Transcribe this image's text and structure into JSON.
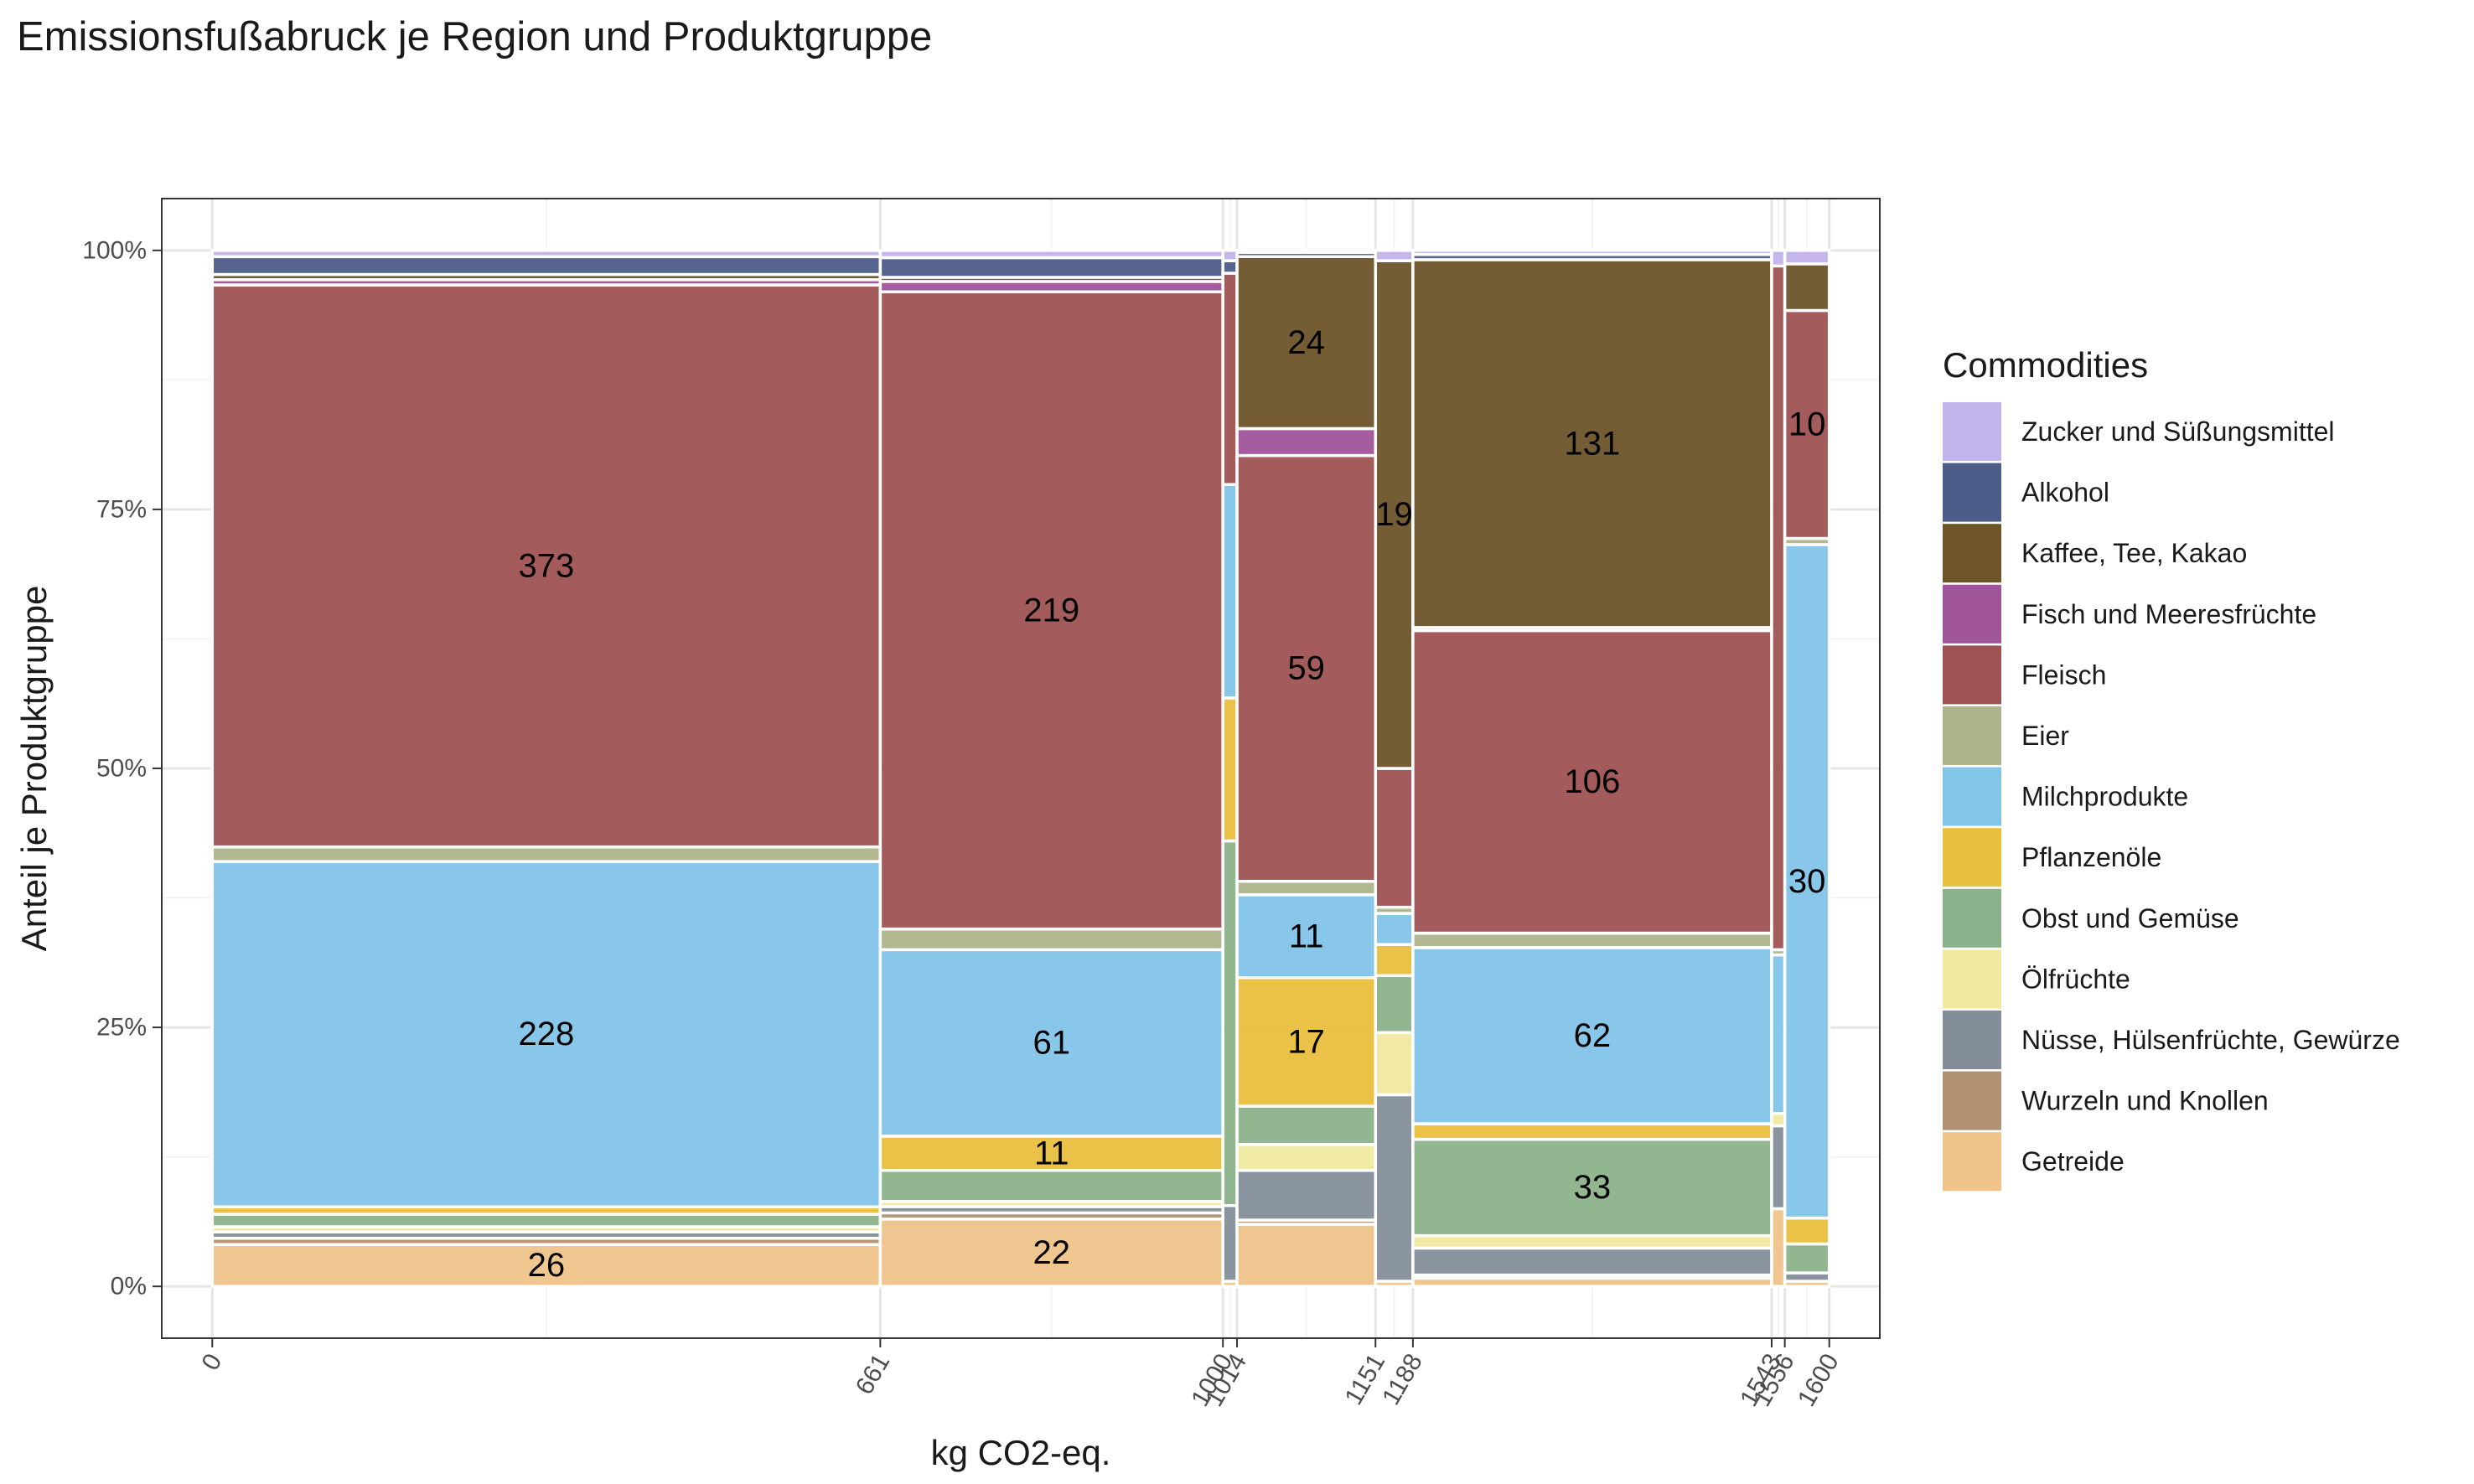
{
  "chart_data": {
    "type": "mosaic",
    "title": "Emissionsfußabruck je Region und Produktgruppe",
    "xlabel": "kg CO2-eq.",
    "ylabel": "Anteil je Produktgruppe",
    "xlim": [
      -50,
      1650
    ],
    "ylim": [
      -0.05,
      1.05
    ],
    "x_breaks": [
      0,
      661,
      1000,
      1014,
      1151,
      1188,
      1543,
      1556,
      1600
    ],
    "y_breaks": [
      0,
      0.25,
      0.5,
      0.75,
      1.0
    ],
    "y_tick_labels": [
      "0%",
      "25%",
      "50%",
      "75%",
      "100%"
    ],
    "grid": true,
    "legend_position": "right",
    "legend_title": "Commodities",
    "commodities": [
      {
        "name": "Zucker und Süßungsmittel",
        "color": "#C2B3EB"
      },
      {
        "name": "Alkohol",
        "color": "#4E5C89"
      },
      {
        "name": "Kaffee, Tee, Kakao",
        "color": "#6D5429"
      },
      {
        "name": "Fisch und Meeresfrüchte",
        "color": "#A0549A"
      },
      {
        "name": "Fleisch",
        "color": "#9E5252"
      },
      {
        "name": "Eier",
        "color": "#ADB48C"
      },
      {
        "name": "Milchprodukte",
        "color": "#83C4E9"
      },
      {
        "name": "Pflanzenöle",
        "color": "#E9BF3E"
      },
      {
        "name": "Obst und Gemüse",
        "color": "#8BB28A"
      },
      {
        "name": "Ölfrüchte",
        "color": "#F0E8A1"
      },
      {
        "name": "Nüsse, Hülsenfrüchte, Gewürze",
        "color": "#848E9A"
      },
      {
        "name": "Wurzeln und Knollen",
        "color": "#B09272"
      },
      {
        "name": "Getreide",
        "color": "#EFC38A"
      }
    ],
    "regions": [
      {
        "x_start": 0,
        "x_end": 661,
        "segments": [
          {
            "commodity": "Getreide",
            "value": 26,
            "share": 0.04,
            "label": "26"
          },
          {
            "commodity": "Wurzeln und Knollen",
            "share": 0.006
          },
          {
            "commodity": "Nüsse, Hülsenfrüchte, Gewürze",
            "share": 0.006
          },
          {
            "commodity": "Ölfrüchte",
            "share": 0.005
          },
          {
            "commodity": "Obst und Gemüse",
            "share": 0.012
          },
          {
            "commodity": "Pflanzenöle",
            "share": 0.007
          },
          {
            "commodity": "Milchprodukte",
            "value": 228,
            "share": 0.33,
            "label": "228"
          },
          {
            "commodity": "Eier",
            "share": 0.014
          },
          {
            "commodity": "Fleisch",
            "value": 373,
            "share": 0.537,
            "label": "373"
          },
          {
            "commodity": "Fisch und Meeresfrüchte",
            "share": 0.005
          },
          {
            "commodity": "Kaffee, Tee, Kakao",
            "share": 0.005
          },
          {
            "commodity": "Alkohol",
            "share": 0.017
          },
          {
            "commodity": "Zucker und Süßungsmittel",
            "share": 0.006
          }
        ]
      },
      {
        "x_start": 661,
        "x_end": 1000,
        "segments": [
          {
            "commodity": "Getreide",
            "value": 22,
            "share": 0.065,
            "label": "22"
          },
          {
            "commodity": "Wurzeln und Knollen",
            "share": 0.006
          },
          {
            "commodity": "Nüsse, Hülsenfrüchte, Gewürze",
            "share": 0.006
          },
          {
            "commodity": "Ölfrüchte",
            "share": 0.005
          },
          {
            "commodity": "Obst und Gemüse",
            "share": 0.03
          },
          {
            "commodity": "Pflanzenöle",
            "value": 11,
            "share": 0.033,
            "label": "11"
          },
          {
            "commodity": "Milchprodukte",
            "value": 61,
            "share": 0.18,
            "label": "61"
          },
          {
            "commodity": "Eier",
            "share": 0.02
          },
          {
            "commodity": "Fleisch",
            "value": 219,
            "share": 0.615,
            "label": "219"
          },
          {
            "commodity": "Fisch und Meeresfrüchte",
            "share": 0.01
          },
          {
            "commodity": "Kaffee, Tee, Kakao",
            "share": 0.004
          },
          {
            "commodity": "Alkohol",
            "share": 0.019
          },
          {
            "commodity": "Zucker und Süßungsmittel",
            "share": 0.007
          }
        ]
      },
      {
        "x_start": 1000,
        "x_end": 1014,
        "segments": [
          {
            "commodity": "Getreide",
            "share": 0.005
          },
          {
            "commodity": "Nüsse, Hülsenfrüchte, Gewürze",
            "share": 0.073
          },
          {
            "commodity": "Obst und Gemüse",
            "share": 0.352
          },
          {
            "commodity": "Pflanzenöle",
            "share": 0.138
          },
          {
            "commodity": "Milchprodukte",
            "share": 0.206
          },
          {
            "commodity": "Fleisch",
            "share": 0.204
          },
          {
            "commodity": "Alkohol",
            "share": 0.012
          },
          {
            "commodity": "Zucker und Süßungsmittel",
            "share": 0.01
          }
        ]
      },
      {
        "x_start": 1014,
        "x_end": 1151,
        "segments": [
          {
            "commodity": "Getreide",
            "share": 0.06
          },
          {
            "commodity": "Wurzeln und Knollen",
            "share": 0.004
          },
          {
            "commodity": "Nüsse, Hülsenfrüchte, Gewürze",
            "share": 0.048
          },
          {
            "commodity": "Ölfrüchte",
            "share": 0.025
          },
          {
            "commodity": "Obst und Gemüse",
            "share": 0.037
          },
          {
            "commodity": "Pflanzenöle",
            "value": 17,
            "share": 0.124,
            "label": "17"
          },
          {
            "commodity": "Milchprodukte",
            "value": 11,
            "share": 0.08,
            "label": "11"
          },
          {
            "commodity": "Eier",
            "share": 0.013
          },
          {
            "commodity": "Fleisch",
            "value": 59,
            "share": 0.411,
            "label": "59"
          },
          {
            "commodity": "Fisch und Meeresfrüchte",
            "share": 0.026
          },
          {
            "commodity": "Kaffee, Tee, Kakao",
            "value": 24,
            "share": 0.166,
            "label": "24"
          },
          {
            "commodity": "Alkohol",
            "share": 0.004
          },
          {
            "commodity": "Zucker und Süßungsmittel",
            "share": 0.002
          }
        ]
      },
      {
        "x_start": 1151,
        "x_end": 1188,
        "segments": [
          {
            "commodity": "Getreide",
            "share": 0.005
          },
          {
            "commodity": "Nüsse, Hülsenfrüchte, Gewürze",
            "share": 0.18
          },
          {
            "commodity": "Ölfrüchte",
            "share": 0.06
          },
          {
            "commodity": "Obst und Gemüse",
            "share": 0.055
          },
          {
            "commodity": "Pflanzenöle",
            "share": 0.03
          },
          {
            "commodity": "Milchprodukte",
            "share": 0.03
          },
          {
            "commodity": "Eier",
            "share": 0.006
          },
          {
            "commodity": "Fleisch",
            "share": 0.134
          },
          {
            "commodity": "Kaffee, Tee, Kakao",
            "value": 19,
            "share": 0.49,
            "label": "19"
          },
          {
            "commodity": "Zucker und Süßungsmittel",
            "share": 0.01
          }
        ]
      },
      {
        "x_start": 1188,
        "x_end": 1543,
        "segments": [
          {
            "commodity": "Getreide",
            "share": 0.008
          },
          {
            "commodity": "Wurzeln und Knollen",
            "share": 0.003
          },
          {
            "commodity": "Nüsse, Hülsenfrüchte, Gewürze",
            "share": 0.026
          },
          {
            "commodity": "Ölfrüchte",
            "share": 0.012
          },
          {
            "commodity": "Obst und Gemüse",
            "value": 33,
            "share": 0.093,
            "label": "33"
          },
          {
            "commodity": "Pflanzenöle",
            "share": 0.015
          },
          {
            "commodity": "Milchprodukte",
            "value": 62,
            "share": 0.17,
            "label": "62"
          },
          {
            "commodity": "Eier",
            "share": 0.014
          },
          {
            "commodity": "Fleisch",
            "value": 106,
            "share": 0.292,
            "label": "106"
          },
          {
            "commodity": "Fisch und Meeresfrüchte",
            "share": 0.003
          },
          {
            "commodity": "Kaffee, Tee, Kakao",
            "value": 131,
            "share": 0.355,
            "label": "131"
          },
          {
            "commodity": "Alkohol",
            "share": 0.005
          },
          {
            "commodity": "Zucker und Süßungsmittel",
            "share": 0.004
          }
        ]
      },
      {
        "x_start": 1543,
        "x_end": 1556,
        "segments": [
          {
            "commodity": "Getreide",
            "share": 0.075
          },
          {
            "commodity": "Nüsse, Hülsenfrüchte, Gewürze",
            "share": 0.08
          },
          {
            "commodity": "Ölfrüchte",
            "share": 0.012
          },
          {
            "commodity": "Milchprodukte",
            "share": 0.153
          },
          {
            "commodity": "Eier",
            "share": 0.005
          },
          {
            "commodity": "Fleisch",
            "share": 0.66
          },
          {
            "commodity": "Zucker und Süßungsmittel",
            "share": 0.015
          }
        ]
      },
      {
        "x_start": 1556,
        "x_end": 1600,
        "segments": [
          {
            "commodity": "Getreide",
            "share": 0.005
          },
          {
            "commodity": "Nüsse, Hülsenfrüchte, Gewürze",
            "share": 0.008
          },
          {
            "commodity": "Obst und Gemüse",
            "share": 0.028
          },
          {
            "commodity": "Pflanzenöle",
            "share": 0.025
          },
          {
            "commodity": "Milchprodukte",
            "value": 30,
            "share": 0.65,
            "label": "30"
          },
          {
            "commodity": "Eier",
            "share": 0.006
          },
          {
            "commodity": "Fleisch",
            "value": 10,
            "share": 0.22,
            "label": "10"
          },
          {
            "commodity": "Kaffee, Tee, Kakao",
            "share": 0.045
          },
          {
            "commodity": "Zucker und Süßungsmittel",
            "share": 0.013
          }
        ]
      }
    ]
  }
}
